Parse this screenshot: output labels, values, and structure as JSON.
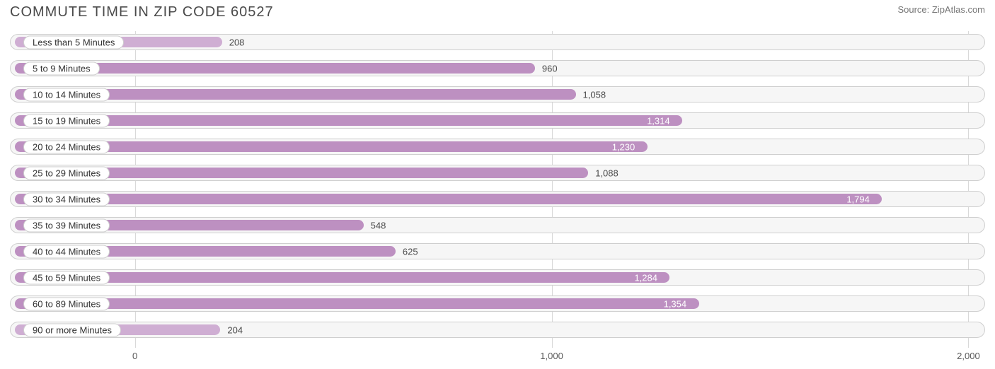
{
  "title": "COMMUTE TIME IN ZIP CODE 60527",
  "source": "Source: ZipAtlas.com",
  "chart": {
    "type": "bar",
    "bar_color": "#bd90c1",
    "bar_color_alt": "#cfaed3",
    "track_bg": "#f6f6f6",
    "track_border": "#cfcfcf",
    "grid_color": "#d9d9d9",
    "background_color": "#ffffff",
    "label_color_inside": "#ffffff",
    "label_color_outside": "#4a4a4a",
    "label_fontsize": 13,
    "title_fontsize": 20,
    "x_axis": {
      "min": -300,
      "max": 2040,
      "ticks": [
        0,
        1000,
        2000
      ],
      "tick_labels": [
        "0",
        "1,000",
        "2,000"
      ]
    },
    "value_inside_threshold": 1100,
    "alt_color_threshold": 300,
    "categories": [
      {
        "label": "Less than 5 Minutes",
        "value": 208,
        "display": "208"
      },
      {
        "label": "5 to 9 Minutes",
        "value": 960,
        "display": "960"
      },
      {
        "label": "10 to 14 Minutes",
        "value": 1058,
        "display": "1,058"
      },
      {
        "label": "15 to 19 Minutes",
        "value": 1314,
        "display": "1,314"
      },
      {
        "label": "20 to 24 Minutes",
        "value": 1230,
        "display": "1,230"
      },
      {
        "label": "25 to 29 Minutes",
        "value": 1088,
        "display": "1,088"
      },
      {
        "label": "30 to 34 Minutes",
        "value": 1794,
        "display": "1,794"
      },
      {
        "label": "35 to 39 Minutes",
        "value": 548,
        "display": "548"
      },
      {
        "label": "40 to 44 Minutes",
        "value": 625,
        "display": "625"
      },
      {
        "label": "45 to 59 Minutes",
        "value": 1284,
        "display": "1,284"
      },
      {
        "label": "60 to 89 Minutes",
        "value": 1354,
        "display": "1,354"
      },
      {
        "label": "90 or more Minutes",
        "value": 204,
        "display": "204"
      }
    ]
  }
}
